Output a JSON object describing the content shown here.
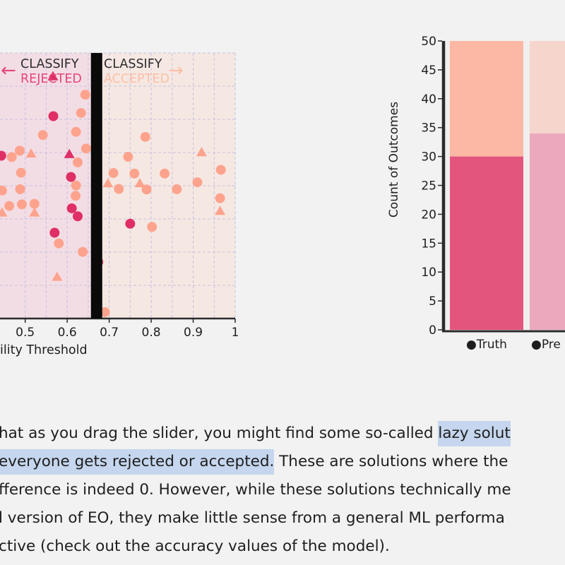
{
  "colors": {
    "rejected_bg": "#f3dde5",
    "accepted_bg": "#f5e8e3",
    "grid": "#c7c1dc",
    "axis": "#2b2b2b",
    "threshold": "#0a0a0a",
    "rejected_label": "#e4467c",
    "accepted_label": "#fdbfa6",
    "dark_point": "#df2f66",
    "light_point": "#fda38d",
    "bar_truth_bottom": "#e4557d",
    "bar_truth_top": "#fcb8a4",
    "bar_pred_bottom": "#eba9bd",
    "bar_pred_top": "#f6d5cd",
    "highlight": "#c5d6ee",
    "page_bg": "#f1f2f1"
  },
  "chart_data": [
    {
      "type": "scatter",
      "title": "",
      "xlabel": "ility Threshold",
      "xlim": [
        0.44,
        1.0
      ],
      "ylim": [
        0,
        1
      ],
      "x_ticks": [
        0.5,
        0.6,
        0.7,
        0.8,
        0.9,
        1
      ],
      "x_tick_labels": [
        "0.5",
        "0.6",
        "0.7",
        "0.8",
        "0.9",
        "1"
      ],
      "threshold": 0.67,
      "annotations": {
        "left_top": "CLASSIFY",
        "left_bottom": "REJECTED",
        "right_top": "CLASSIFY",
        "right_bottom": "ACCEPTED",
        "left_arrow": "←",
        "right_arrow": "→"
      },
      "series": [
        {
          "name": "positive",
          "marker": "circle",
          "color_key": "dark_point",
          "points": [
            [
              0.443,
              0.613
            ],
            [
              0.567,
              0.762
            ],
            [
              0.609,
              0.533
            ],
            [
              0.611,
              0.415
            ],
            [
              0.625,
              0.385
            ],
            [
              0.57,
              0.323
            ],
            [
              0.674,
              0.213
            ],
            [
              0.75,
              0.357
            ]
          ]
        },
        {
          "name": "positive",
          "marker": "triangle",
          "color_key": "dark_point",
          "points": [
            [
              0.566,
              0.912
            ],
            [
              0.605,
              0.619
            ]
          ]
        },
        {
          "name": "negative",
          "marker": "circle",
          "color_key": "light_point",
          "points": [
            [
              0.643,
              0.843
            ],
            [
              0.633,
              0.774
            ],
            [
              0.621,
              0.703
            ],
            [
              0.542,
              0.691
            ],
            [
              0.487,
              0.632
            ],
            [
              0.468,
              0.608
            ],
            [
              0.645,
              0.64
            ],
            [
              0.625,
              0.588
            ],
            [
              0.49,
              0.549
            ],
            [
              0.488,
              0.487
            ],
            [
              0.621,
              0.501
            ],
            [
              0.492,
              0.43
            ],
            [
              0.462,
              0.424
            ],
            [
              0.445,
              0.482
            ],
            [
              0.522,
              0.432
            ],
            [
              0.62,
              0.462
            ],
            [
              0.58,
              0.283
            ],
            [
              0.637,
              0.251
            ],
            [
              0.745,
              0.609
            ],
            [
              0.786,
              0.684
            ],
            [
              0.71,
              0.548
            ],
            [
              0.76,
              0.546
            ],
            [
              0.832,
              0.546
            ],
            [
              0.723,
              0.488
            ],
            [
              0.789,
              0.486
            ],
            [
              0.861,
              0.487
            ],
            [
              0.91,
              0.513
            ],
            [
              0.966,
              0.56
            ],
            [
              0.964,
              0.453
            ],
            [
              0.802,
              0.345
            ],
            [
              0.69,
              0.024
            ]
          ]
        },
        {
          "name": "negative",
          "marker": "triangle",
          "color_key": "light_point",
          "points": [
            [
              0.514,
              0.621
            ],
            [
              0.445,
              0.399
            ],
            [
              0.522,
              0.399
            ],
            [
              0.576,
              0.157
            ],
            [
              0.697,
              0.509
            ],
            [
              0.773,
              0.509
            ],
            [
              0.92,
              0.626
            ],
            [
              0.964,
              0.405
            ]
          ]
        }
      ]
    },
    {
      "type": "bar",
      "stacked": true,
      "categories": [
        "Truth",
        "Pre"
      ],
      "legend": [
        "●Truth",
        "●Pre"
      ],
      "ylabel": "Count of Outcomes",
      "ylim": [
        0,
        50
      ],
      "y_ticks": [
        "0",
        "5",
        "10",
        "15",
        "20",
        "25",
        "30",
        "35",
        "40",
        "45",
        "50"
      ],
      "series": [
        {
          "name": "bottom",
          "values": [
            30,
            34
          ]
        },
        {
          "name": "top",
          "values": [
            20,
            16
          ]
        }
      ]
    }
  ],
  "paragraph": {
    "line1_pre": "hat as you drag the slider, you might find some so-called ",
    "line1_hl": "lazy solut",
    "line2_hl": "everyone gets rejected or accepted.",
    "line2_post": " These are solutions where the",
    "line3": "fference is indeed 0. However, while these solutions technically me",
    "line4": "l version of EO, they make little sense from a general ML performa",
    "line5": "ctive (check out the accuracy values of the model)."
  }
}
